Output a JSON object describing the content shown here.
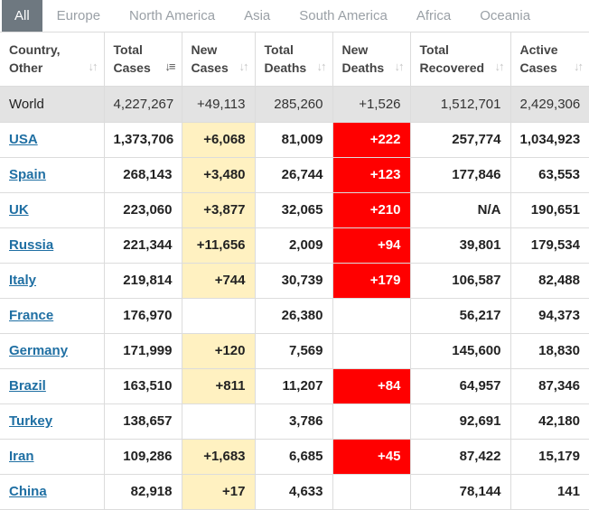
{
  "tabs": [
    {
      "label": "All",
      "active": true
    },
    {
      "label": "Europe",
      "active": false
    },
    {
      "label": "North America",
      "active": false
    },
    {
      "label": "Asia",
      "active": false
    },
    {
      "label": "South America",
      "active": false
    },
    {
      "label": "Africa",
      "active": false
    },
    {
      "label": "Oceania",
      "active": false
    }
  ],
  "columns": [
    {
      "line1": "Country,",
      "line2": "Other",
      "sort_icon": "sort-icon",
      "active": false
    },
    {
      "line1": "Total",
      "line2": "Cases",
      "sort_icon": "sort-icon",
      "active": true
    },
    {
      "line1": "New",
      "line2": "Cases",
      "sort_icon": "sort-icon",
      "active": false
    },
    {
      "line1": "Total",
      "line2": "Deaths",
      "sort_icon": "sort-icon",
      "active": false
    },
    {
      "line1": "New",
      "line2": "Deaths",
      "sort_icon": "sort-icon",
      "active": false
    },
    {
      "line1": "Total",
      "line2": "Recovered",
      "sort_icon": "sort-icon",
      "active": false
    },
    {
      "line1": "Active",
      "line2": "Cases",
      "sort_icon": "sort-icon",
      "active": false
    }
  ],
  "world": {
    "country": "World",
    "total_cases": "4,227,267",
    "new_cases": "+49,113",
    "total_deaths": "285,260",
    "new_deaths": "+1,526",
    "total_recovered": "1,512,701",
    "active_cases": "2,429,306"
  },
  "rows": [
    {
      "country": "USA",
      "total_cases": "1,373,706",
      "new_cases": "+6,068",
      "total_deaths": "81,009",
      "new_deaths": "+222",
      "total_recovered": "257,774",
      "active_cases": "1,034,923"
    },
    {
      "country": "Spain",
      "total_cases": "268,143",
      "new_cases": "+3,480",
      "total_deaths": "26,744",
      "new_deaths": "+123",
      "total_recovered": "177,846",
      "active_cases": "63,553"
    },
    {
      "country": "UK",
      "total_cases": "223,060",
      "new_cases": "+3,877",
      "total_deaths": "32,065",
      "new_deaths": "+210",
      "total_recovered": "N/A",
      "active_cases": "190,651"
    },
    {
      "country": "Russia",
      "total_cases": "221,344",
      "new_cases": "+11,656",
      "total_deaths": "2,009",
      "new_deaths": "+94",
      "total_recovered": "39,801",
      "active_cases": "179,534"
    },
    {
      "country": "Italy",
      "total_cases": "219,814",
      "new_cases": "+744",
      "total_deaths": "30,739",
      "new_deaths": "+179",
      "total_recovered": "106,587",
      "active_cases": "82,488"
    },
    {
      "country": "France",
      "total_cases": "176,970",
      "new_cases": "",
      "total_deaths": "26,380",
      "new_deaths": "",
      "total_recovered": "56,217",
      "active_cases": "94,373"
    },
    {
      "country": "Germany",
      "total_cases": "171,999",
      "new_cases": "+120",
      "total_deaths": "7,569",
      "new_deaths": "",
      "total_recovered": "145,600",
      "active_cases": "18,830"
    },
    {
      "country": "Brazil",
      "total_cases": "163,510",
      "new_cases": "+811",
      "total_deaths": "11,207",
      "new_deaths": "+84",
      "total_recovered": "64,957",
      "active_cases": "87,346"
    },
    {
      "country": "Turkey",
      "total_cases": "138,657",
      "new_cases": "",
      "total_deaths": "3,786",
      "new_deaths": "",
      "total_recovered": "92,691",
      "active_cases": "42,180"
    },
    {
      "country": "Iran",
      "total_cases": "109,286",
      "new_cases": "+1,683",
      "total_deaths": "6,685",
      "new_deaths": "+45",
      "total_recovered": "87,422",
      "active_cases": "15,179"
    },
    {
      "country": "China",
      "total_cases": "82,918",
      "new_cases": "+17",
      "total_deaths": "4,633",
      "new_deaths": "",
      "total_recovered": "78,144",
      "active_cases": "141"
    }
  ],
  "colors": {
    "new_cases_bg": "#fff1c1",
    "new_deaths_bg": "#ff0000",
    "world_bg": "#e3e3e3",
    "link": "#1f6fa3",
    "tab_active_bg": "#6e7880"
  }
}
